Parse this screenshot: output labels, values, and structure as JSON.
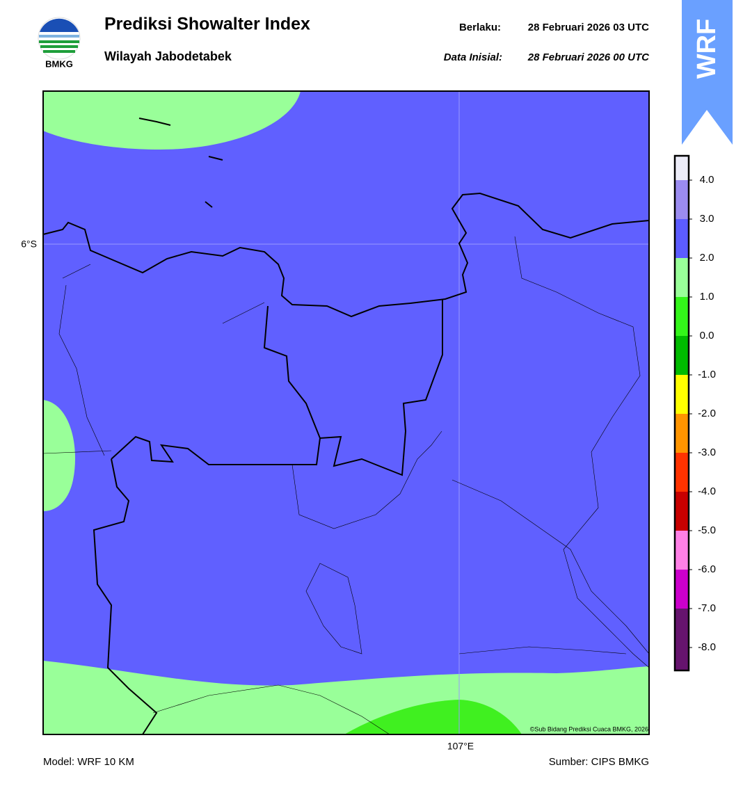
{
  "header": {
    "title": "Prediksi Showalter Index",
    "subtitle": "Wilayah Jabodetabek",
    "logo_text": "BMKG",
    "valid_label": "Berlaku:",
    "valid_time": "28 Februari 2026 03 UTC",
    "init_label": "Data Inisial:",
    "init_time": "28 Februari 2026 00 UTC",
    "badge": "WRF"
  },
  "map": {
    "lat_label": "6°S",
    "lon_label": "107°E",
    "copyright": "©Sub Bidang Prediksi Cuaca BMKG, 2026"
  },
  "colorbar": {
    "colors": [
      "#ececf8",
      "#9b8cf0",
      "#5c5cff",
      "#99ff99",
      "#33f51a",
      "#00bb00",
      "#ffff00",
      "#ff9500",
      "#ff3300",
      "#c80000",
      "#ff80e6",
      "#cc00cc",
      "#66146e"
    ],
    "ticks": [
      {
        "value": 4,
        "label": "4.0"
      },
      {
        "value": 3,
        "label": "3.0"
      },
      {
        "value": 2,
        "label": "2.0"
      },
      {
        "value": 1,
        "label": "1.0"
      },
      {
        "value": 0,
        "label": "0.0"
      },
      {
        "value": -1,
        "label": "-1.0"
      },
      {
        "value": -2,
        "label": "-2.0"
      },
      {
        "value": -3,
        "label": "-3.0"
      },
      {
        "value": -4,
        "label": "-4.0"
      },
      {
        "value": -5,
        "label": "-5.0"
      },
      {
        "value": -6,
        "label": "-6.0"
      },
      {
        "value": -7,
        "label": "-7.0"
      },
      {
        "value": -8,
        "label": "-8.0"
      }
    ]
  },
  "footer": {
    "model": "Model: WRF 10 KM",
    "source": "Sumber: CIPS BMKG"
  }
}
